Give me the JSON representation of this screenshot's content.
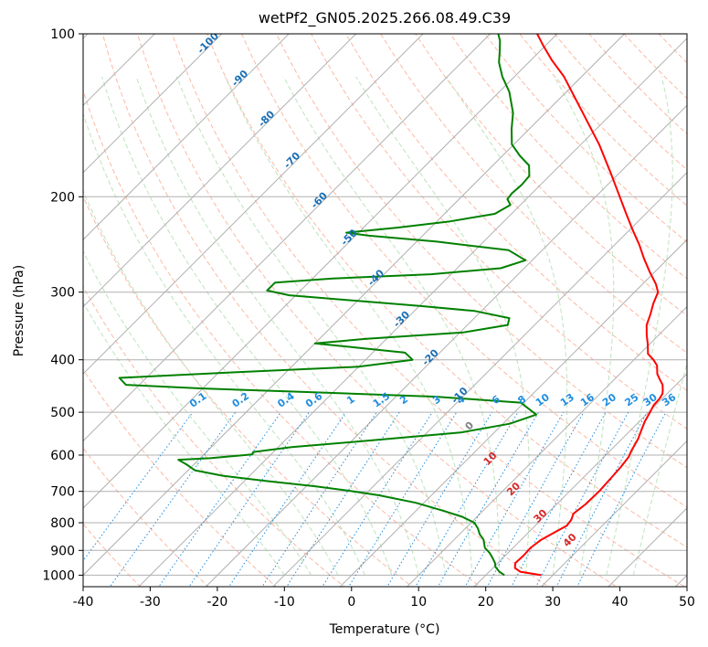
{
  "chart_data": {
    "type": "skew-t",
    "title": "wetPf2_GN05.2025.266.08.49.C39",
    "xlabel": "Temperature (°C)",
    "ylabel": "Pressure (hPa)",
    "xlim": [
      -40,
      50
    ],
    "ylim": [
      1050,
      100
    ],
    "x_ticks": [
      "-40",
      "-30",
      "-20",
      "-10",
      "0",
      "10",
      "20",
      "30",
      "40",
      "50"
    ],
    "y_ticks": [
      "100",
      "200",
      "300",
      "400",
      "500",
      "600",
      "700",
      "800",
      "900",
      "1000"
    ],
    "mixing_ratio_labels": [
      "0.1",
      "0.2",
      "0.4",
      "0.6",
      "1",
      "1.5",
      "2",
      "3",
      "4",
      "6",
      "8",
      "10",
      "13",
      "16",
      "20",
      "25",
      "30",
      "36"
    ],
    "dry_adiabat_labels": [
      "-100",
      "-90",
      "-80",
      "-70",
      "-60",
      "-50",
      "-40",
      "-30",
      "-20",
      "-10"
    ],
    "moist_adiabat_labels": [
      "0",
      "10",
      "20",
      "30",
      "40"
    ],
    "series": [
      {
        "name": "temperature",
        "color": "#ff0000",
        "points": [
          [
            1000,
            28.3
          ],
          [
            985,
            24.6
          ],
          [
            970,
            23.3
          ],
          [
            950,
            22.6
          ],
          [
            920,
            22.7
          ],
          [
            890,
            22.6
          ],
          [
            860,
            23.0
          ],
          [
            830,
            24.0
          ],
          [
            810,
            24.7
          ],
          [
            790,
            24.5
          ],
          [
            770,
            23.9
          ],
          [
            740,
            24.3
          ],
          [
            700,
            24.4
          ],
          [
            660,
            24.2
          ],
          [
            630,
            24.0
          ],
          [
            605,
            23.7
          ],
          [
            590,
            23.2
          ],
          [
            575,
            22.8
          ],
          [
            560,
            22.4
          ],
          [
            540,
            21.6
          ],
          [
            520,
            20.8
          ],
          [
            500,
            20.2
          ],
          [
            485,
            19.7
          ],
          [
            472,
            19.6
          ],
          [
            462,
            19.3
          ],
          [
            455,
            18.8
          ],
          [
            445,
            18.0
          ],
          [
            435,
            16.8
          ],
          [
            425,
            15.6
          ],
          [
            410,
            14.3
          ],
          [
            400,
            12.9
          ],
          [
            390,
            11.2
          ],
          [
            375,
            9.8
          ],
          [
            360,
            8.2
          ],
          [
            345,
            6.7
          ],
          [
            330,
            5.7
          ],
          [
            315,
            4.5
          ],
          [
            300,
            3.5
          ],
          [
            290,
            2.0
          ],
          [
            275,
            -0.8
          ],
          [
            260,
            -3.6
          ],
          [
            245,
            -6.4
          ],
          [
            230,
            -9.6
          ],
          [
            215,
            -12.9
          ],
          [
            200,
            -16.4
          ],
          [
            180,
            -21.5
          ],
          [
            160,
            -27.3
          ],
          [
            140,
            -34.4
          ],
          [
            120,
            -42.6
          ],
          [
            112,
            -46.8
          ],
          [
            105,
            -50.4
          ],
          [
            100,
            -53.0
          ]
        ]
      },
      {
        "name": "dewpoint",
        "color": "#008000",
        "points": [
          [
            1000,
            22.8
          ],
          [
            985,
            21.5
          ],
          [
            965,
            20.2
          ],
          [
            950,
            19.6
          ],
          [
            930,
            18.5
          ],
          [
            910,
            17.3
          ],
          [
            890,
            15.8
          ],
          [
            860,
            14.4
          ],
          [
            840,
            13.0
          ],
          [
            820,
            11.9
          ],
          [
            800,
            10.5
          ],
          [
            780,
            7.8
          ],
          [
            760,
            4.0
          ],
          [
            735,
            -1.2
          ],
          [
            712,
            -7.8
          ],
          [
            700,
            -12.2
          ],
          [
            685,
            -18.7
          ],
          [
            670,
            -26.7
          ],
          [
            655,
            -34.0
          ],
          [
            640,
            -39.0
          ],
          [
            625,
            -41.0
          ],
          [
            612,
            -43.0
          ],
          [
            608,
            -38.5
          ],
          [
            598,
            -32.8
          ],
          [
            592,
            -33.0
          ],
          [
            580,
            -28.0
          ],
          [
            565,
            -18.0
          ],
          [
            545,
            -5.0
          ],
          [
            525,
            1.0
          ],
          [
            505,
            3.6
          ],
          [
            480,
            -0.5
          ],
          [
            468,
            -14.0
          ],
          [
            458,
            -36.0
          ],
          [
            452,
            -50.0
          ],
          [
            445,
            -62.0
          ],
          [
            432,
            -64.0
          ],
          [
            422,
            -48.0
          ],
          [
            412,
            -30.0
          ],
          [
            400,
            -23.0
          ],
          [
            388,
            -25.2
          ],
          [
            380,
            -33.0
          ],
          [
            373,
            -40.0
          ],
          [
            366,
            -33.0
          ],
          [
            356,
            -19.5
          ],
          [
            345,
            -14.0
          ],
          [
            335,
            -14.8
          ],
          [
            325,
            -21.0
          ],
          [
            318,
            -30.0
          ],
          [
            310,
            -42.0
          ],
          [
            304,
            -51.0
          ],
          [
            298,
            -55.0
          ],
          [
            288,
            -55.0
          ],
          [
            283,
            -47.0
          ],
          [
            278,
            -33.0
          ],
          [
            271,
            -23.5
          ],
          [
            262,
            -21.0
          ],
          [
            251,
            -25.0
          ],
          [
            242,
            -37.0
          ],
          [
            236,
            -48.0
          ],
          [
            233,
            -51.8
          ],
          [
            228,
            -45.0
          ],
          [
            222,
            -38.0
          ],
          [
            215,
            -32.5
          ],
          [
            207,
            -31.5
          ],
          [
            202,
            -32.8
          ],
          [
            197,
            -33.0
          ],
          [
            190,
            -32.8
          ],
          [
            183,
            -33.0
          ],
          [
            175,
            -34.6
          ],
          [
            168,
            -37.4
          ],
          [
            160,
            -40.3
          ],
          [
            150,
            -42.6
          ],
          [
            140,
            -44.8
          ],
          [
            128,
            -48.5
          ],
          [
            120,
            -51.8
          ],
          [
            113,
            -54.4
          ],
          [
            107,
            -56.2
          ],
          [
            103,
            -57.5
          ],
          [
            100,
            -58.8
          ]
        ]
      }
    ]
  }
}
